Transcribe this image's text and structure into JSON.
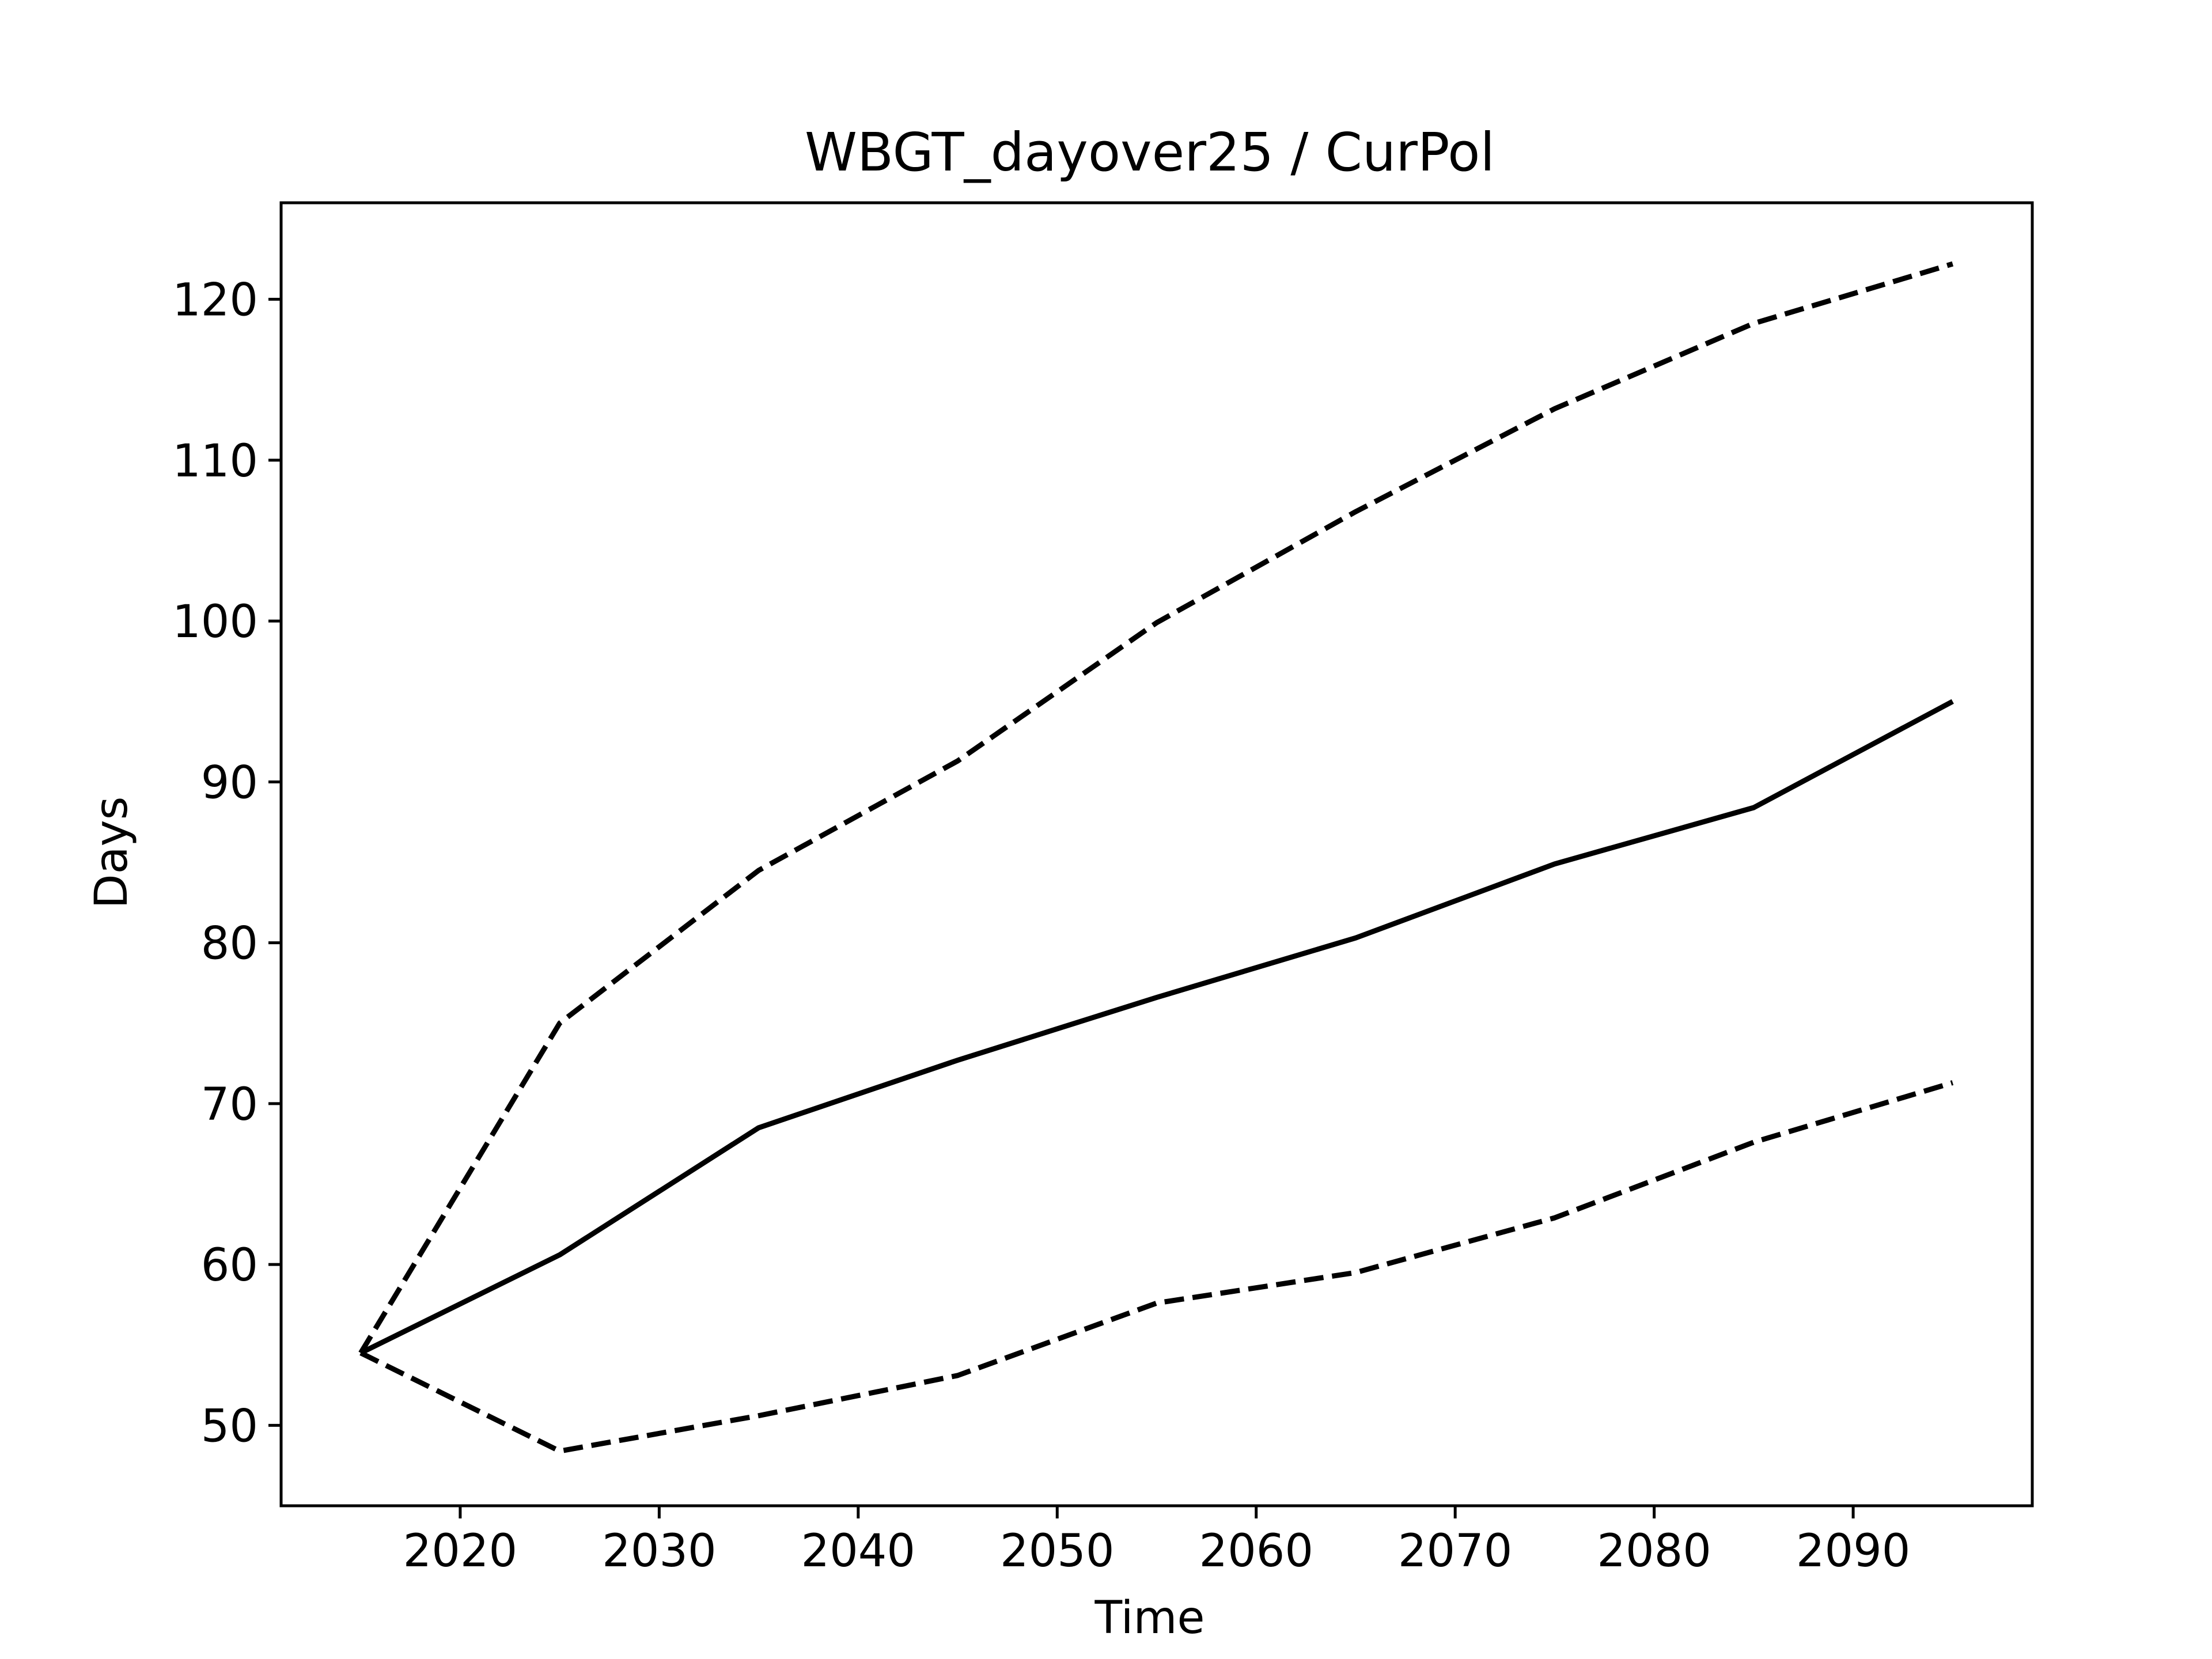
{
  "chart_data": {
    "type": "line",
    "title": "WBGT_dayover25 / CurPol",
    "xlabel": "Time",
    "ylabel": "Days",
    "xlim": [
      2011,
      2099
    ],
    "ylim": [
      45,
      126
    ],
    "xticks": [
      2020,
      2030,
      2040,
      2050,
      2060,
      2070,
      2080,
      2090
    ],
    "yticks": [
      50,
      60,
      70,
      80,
      90,
      100,
      110,
      120
    ],
    "grid": false,
    "legend": "none",
    "x": [
      2015,
      2025,
      2035,
      2045,
      2055,
      2065,
      2075,
      2085,
      2095
    ],
    "series": [
      {
        "style": "solid",
        "color": "#000000",
        "values": [
          54.5,
          60.6,
          68.5,
          72.7,
          76.6,
          80.3,
          84.9,
          88.4,
          95.0
        ]
      },
      {
        "style": "dashed",
        "color": "#000000",
        "values": [
          54.5,
          75.0,
          84.5,
          91.3,
          99.9,
          106.8,
          113.2,
          118.5,
          122.2
        ]
      },
      {
        "style": "dashed",
        "color": "#000000",
        "values": [
          54.5,
          48.4,
          50.6,
          53.1,
          57.6,
          59.5,
          62.9,
          67.6,
          71.3
        ]
      }
    ]
  }
}
